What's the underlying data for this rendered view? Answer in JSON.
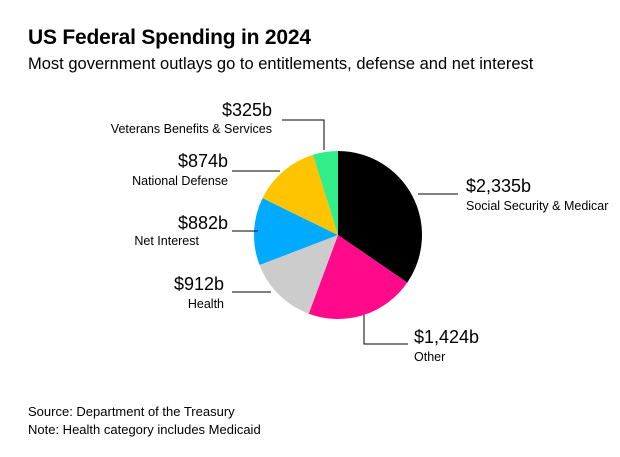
{
  "title": "US Federal Spending in 2024",
  "subtitle": "Most government outlays go to entitlements, defense and net interest",
  "chart_data": {
    "type": "pie",
    "title": "US Federal Spending in 2024",
    "subtitle": "Most government outlays go to entitlements, defense and net interest",
    "unit": "USD billions",
    "slices": [
      {
        "name": "Social Security & Medicare",
        "label_text": "Social Security & Medicar",
        "value": 2335,
        "value_label": "$2,335b",
        "color": "#000000"
      },
      {
        "name": "Other",
        "value": 1424,
        "value_label": "$1,424b",
        "color": "#ff0a8a"
      },
      {
        "name": "Health",
        "value": 912,
        "value_label": "$912b",
        "color": "#cccccc"
      },
      {
        "name": "Net Interest",
        "value": 882,
        "value_label": "$882b",
        "color": "#00aaff"
      },
      {
        "name": "National Defense",
        "value": 874,
        "value_label": "$874b",
        "color": "#ffc400"
      },
      {
        "name": "Veterans Benefits & Services",
        "value": 325,
        "value_label": "$325b",
        "color": "#33ee88"
      }
    ]
  },
  "footer": {
    "source": "Source: Department of the Treasury",
    "note": "Note: Health category includes Medicaid"
  }
}
